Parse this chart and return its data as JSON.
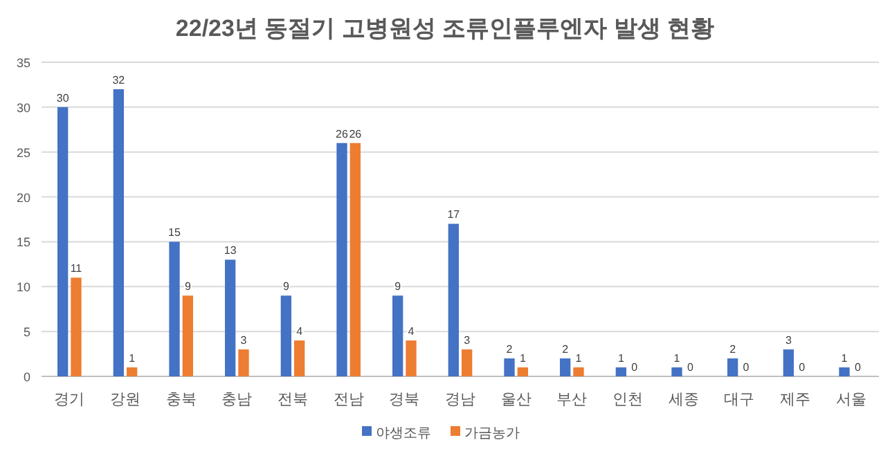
{
  "chart_data": {
    "type": "bar",
    "title": "22/23년 동절기 고병원성 조류인플루엔자 발생 현황",
    "categories": [
      "경기",
      "강원",
      "충북",
      "충남",
      "전북",
      "전남",
      "경북",
      "경남",
      "울산",
      "부산",
      "인천",
      "세종",
      "대구",
      "제주",
      "서울"
    ],
    "series": [
      {
        "name": "야생조류",
        "color": "#4472c4",
        "values": [
          30,
          32,
          15,
          13,
          9,
          26,
          9,
          17,
          2,
          2,
          1,
          1,
          2,
          3,
          1
        ]
      },
      {
        "name": "가금농가",
        "color": "#ed7d31",
        "values": [
          11,
          1,
          9,
          3,
          4,
          26,
          4,
          3,
          1,
          1,
          0,
          0,
          0,
          0,
          0
        ]
      }
    ],
    "ylim": [
      0,
      35
    ],
    "yticks": [
      0,
      5,
      10,
      15,
      20,
      25,
      30,
      35
    ],
    "grid": "y",
    "legend": "bottom",
    "data_labels": true
  }
}
